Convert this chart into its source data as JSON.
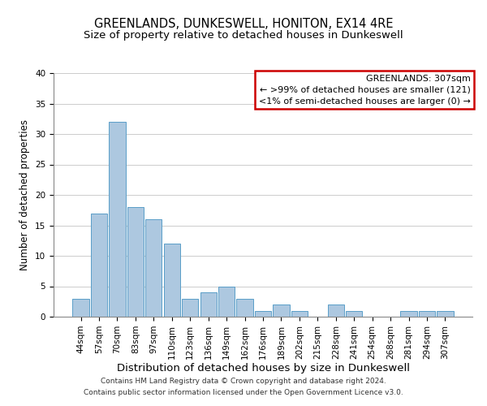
{
  "title": "GREENLANDS, DUNKESWELL, HONITON, EX14 4RE",
  "subtitle": "Size of property relative to detached houses in Dunkeswell",
  "xlabel": "Distribution of detached houses by size in Dunkeswell",
  "ylabel": "Number of detached properties",
  "bar_labels": [
    "44sqm",
    "57sqm",
    "70sqm",
    "83sqm",
    "97sqm",
    "110sqm",
    "123sqm",
    "136sqm",
    "149sqm",
    "162sqm",
    "176sqm",
    "189sqm",
    "202sqm",
    "215sqm",
    "228sqm",
    "241sqm",
    "254sqm",
    "268sqm",
    "281sqm",
    "294sqm",
    "307sqm"
  ],
  "bar_values": [
    3,
    17,
    32,
    18,
    16,
    12,
    3,
    4,
    5,
    3,
    1,
    2,
    1,
    0,
    2,
    1,
    0,
    0,
    1,
    1,
    1
  ],
  "bar_color": "#adc8e0",
  "bar_edge_color": "#5a9ec8",
  "ylim": [
    0,
    40
  ],
  "yticks": [
    0,
    5,
    10,
    15,
    20,
    25,
    30,
    35,
    40
  ],
  "legend_title": "GREENLANDS: 307sqm",
  "legend_line1": "← >99% of detached houses are smaller (121)",
  "legend_line2": "<1% of semi-detached houses are larger (0) →",
  "legend_box_color": "#cc0000",
  "footer_line1": "Contains HM Land Registry data © Crown copyright and database right 2024.",
  "footer_line2": "Contains public sector information licensed under the Open Government Licence v3.0.",
  "title_fontsize": 10.5,
  "subtitle_fontsize": 9.5,
  "xlabel_fontsize": 9.5,
  "ylabel_fontsize": 8.5,
  "tick_fontsize": 7.5,
  "footer_fontsize": 6.5,
  "legend_fontsize": 8,
  "background_color": "#ffffff",
  "grid_color": "#cccccc"
}
